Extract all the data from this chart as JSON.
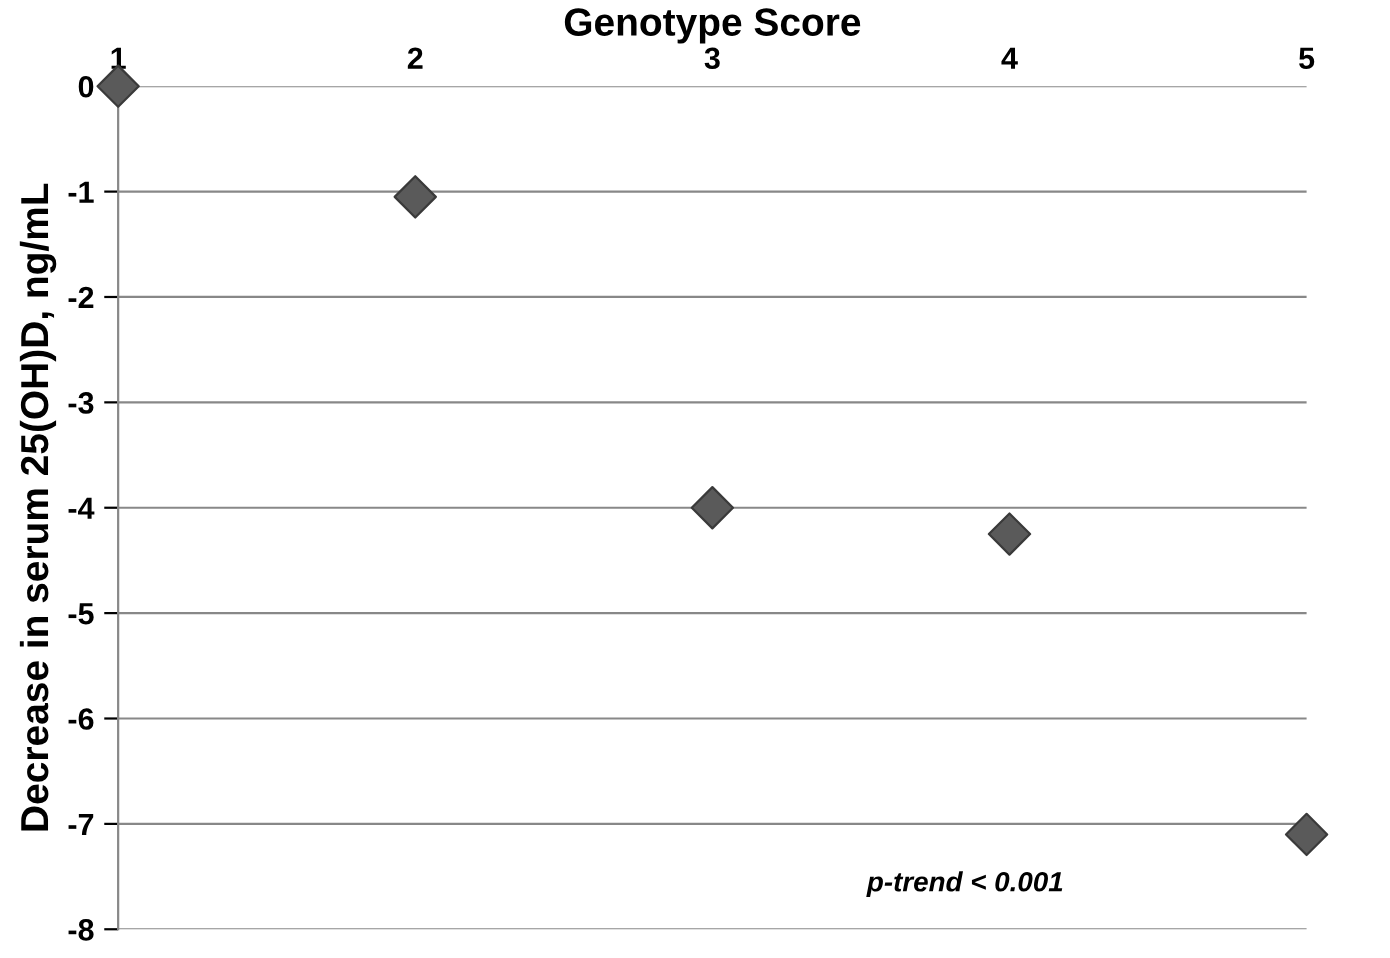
{
  "chart_data": {
    "type": "scatter",
    "xlabel": "Genotype Score",
    "ylabel": "Decrease in serum 25(OH)D, ng/mL",
    "x": [
      1,
      2,
      3,
      4,
      5
    ],
    "series": [
      {
        "color": "#5a5a5a",
        "values": [
          0,
          -1.05,
          -4.0,
          -4.25,
          -7.1
        ]
      }
    ],
    "xlim": [
      1,
      5
    ],
    "xticks": [
      1,
      2,
      3,
      4,
      5
    ],
    "ylim": [
      -8,
      0
    ],
    "yticks": [
      0,
      -1,
      -2,
      -3,
      -4,
      -5,
      -6,
      -7,
      -8
    ],
    "grid": "y",
    "marker": "diamond",
    "annotations": [
      "p-trend < 0.001"
    ]
  }
}
